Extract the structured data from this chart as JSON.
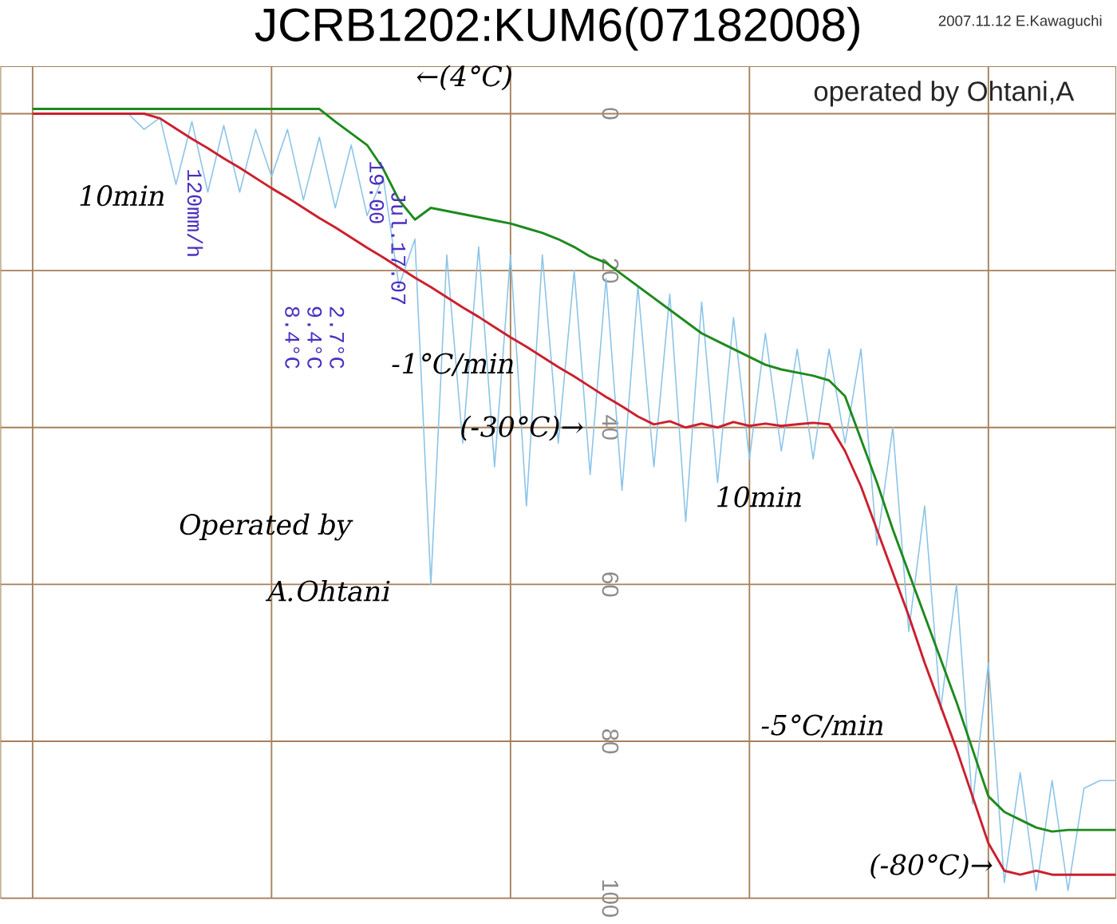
{
  "chart_data": {
    "type": "line",
    "title": "JCRB1202:KUM6(07182008)",
    "categories": [
      null,
      null,
      null,
      null,
      null,
      null,
      null,
      null,
      null,
      null,
      null,
      null,
      null,
      null,
      null,
      null,
      null,
      null,
      null,
      null,
      null,
      null,
      null,
      null,
      null,
      null,
      null,
      null,
      null,
      null,
      null,
      null,
      null,
      null,
      null,
      null,
      null,
      null,
      null,
      null,
      null,
      null,
      null,
      null,
      null,
      null,
      null,
      null,
      null,
      null,
      null,
      null,
      null,
      null,
      null,
      null,
      null,
      null,
      null,
      null,
      null,
      null,
      null,
      null,
      null,
      null,
      null,
      null,
      null
    ],
    "series": [
      {
        "color": "#8cc4e8",
        "values": [
          null,
          null,
          null,
          null,
          null,
          null,
          0,
          2,
          0.5,
          9,
          1,
          10,
          1.5,
          10,
          2,
          8,
          2,
          11,
          3,
          12,
          4,
          13,
          8,
          22,
          16,
          60,
          18,
          42,
          17,
          45,
          18,
          50,
          18,
          42,
          20,
          46,
          21,
          48,
          22,
          45,
          23,
          52,
          24,
          47,
          26,
          44,
          28,
          43,
          30,
          44,
          30,
          42,
          30,
          55,
          40,
          66,
          50,
          76,
          60,
          88,
          70,
          98,
          84,
          99,
          85,
          99,
          86,
          85,
          85
        ]
      },
      {
        "color": "#1e8a1e",
        "values": [
          -0.6,
          -0.6,
          -0.6,
          -0.6,
          -0.6,
          -0.6,
          -0.6,
          -0.6,
          -0.6,
          -0.6,
          -0.6,
          -0.6,
          -0.6,
          -0.6,
          -0.6,
          -0.6,
          -0.6,
          -0.6,
          -0.6,
          1,
          2.5,
          4,
          7,
          11,
          13.5,
          12,
          12.4,
          12.8,
          13.2,
          13.6,
          14,
          14.6,
          15.2,
          16,
          17,
          18.2,
          19,
          20.5,
          22,
          23.5,
          25,
          26.5,
          28,
          29,
          30,
          31,
          32,
          32.6,
          33,
          33.4,
          34,
          36,
          41.5,
          47,
          53,
          58.5,
          64,
          69.5,
          75,
          81,
          87,
          89,
          90,
          91,
          91.5,
          91.3,
          91.3,
          91.3,
          91.3
        ]
      },
      {
        "color": "#cc1f2e",
        "values": [
          0,
          0,
          0,
          0,
          0,
          0,
          0,
          0,
          0.6,
          1.9,
          3.2,
          4.4,
          5.7,
          6.9,
          8.2,
          9.5,
          10.7,
          12,
          13.3,
          14.5,
          15.8,
          17.1,
          18.3,
          19.6,
          20.9,
          22.1,
          23.4,
          24.7,
          25.9,
          27.2,
          28.5,
          29.7,
          31,
          32.3,
          33.5,
          34.8,
          36.1,
          37.3,
          38.6,
          39.6,
          39.2,
          40,
          39.5,
          40,
          39.3,
          39.8,
          39.5,
          39.8,
          39.6,
          39.4,
          39.6,
          43,
          47.5,
          53,
          58.5,
          64,
          70,
          75.5,
          81,
          87,
          93,
          96.5,
          97,
          96.5,
          97,
          97,
          97,
          97,
          97
        ]
      }
    ],
    "ylim": [
      100,
      -6
    ],
    "yticks": [
      0,
      20,
      40,
      60,
      80,
      100
    ],
    "grid": true,
    "tick_labels": "y",
    "annotations": [
      "←(4°C)",
      "10min",
      "-1°C/min",
      "(-30°C)→",
      "10min",
      "Operated by",
      "A.Ohtani",
      "-5°C/min",
      "(-80°C)→",
      "2007.11.12 E.Kawaguchi",
      "operated by Ohtani,A",
      "Jul.17.07",
      "19:00",
      "120mm/h",
      "2.7°C",
      "9.4°C",
      "8.4°C"
    ]
  }
}
